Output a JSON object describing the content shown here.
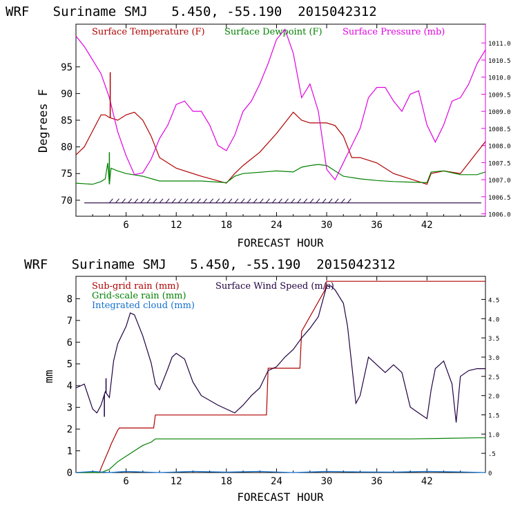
{
  "chart_data": [
    {
      "type": "line",
      "title": "WRF   Suriname SMJ   5.450, -55.190  2015042312",
      "xlabel": "FORECAST HOUR",
      "ylabel": "Degrees F",
      "xlim": [
        0,
        49
      ],
      "ylim": [
        67,
        103
      ],
      "y2lim": [
        1005.93,
        1011.55
      ],
      "x_ticks": [
        "6",
        "12",
        "18",
        "24",
        "30",
        "36",
        "42"
      ],
      "y_ticks": [
        "70",
        "75",
        "80",
        "85",
        "90",
        "95"
      ],
      "y2_ticks": [
        "1006.0",
        "1006.5",
        "1007.0",
        "1007.5",
        "1008.0",
        "1008.5",
        "1009.0",
        "1009.5",
        "1010.0",
        "1010.5",
        "1011.0"
      ],
      "legend": [
        "Surface Temperature (F)",
        "Surface Dewpoint (F)",
        "Surface Pressure (mb)"
      ],
      "colors": {
        "temperature": "#b00000",
        "dewpoint": "#008000",
        "pressure": "#e000e0",
        "wind": "#200040"
      },
      "series": [
        {
          "name": "Surface Temperature (F)",
          "axis": "left",
          "x": [
            0,
            1,
            2,
            3,
            3.5,
            4,
            5,
            6,
            7,
            8,
            9,
            10,
            12,
            15,
            18,
            19,
            20,
            22,
            24,
            26,
            27,
            28,
            29,
            30,
            31,
            32,
            33,
            34,
            36,
            38,
            40,
            42,
            42.5,
            44,
            46,
            48,
            49
          ],
          "y": [
            78.5,
            80,
            83,
            86,
            86,
            85.5,
            85,
            86,
            86.5,
            85,
            82,
            78,
            76,
            74.5,
            73.2,
            75,
            76.5,
            79,
            82.5,
            86.5,
            85,
            84.5,
            84.5,
            84.5,
            84,
            82,
            78,
            78,
            77,
            75,
            74,
            73,
            75,
            75.5,
            75,
            79,
            81
          ]
        },
        {
          "name": "Surface Dewpoint (F)",
          "axis": "left",
          "x": [
            0,
            2,
            3,
            3.5,
            3.8,
            4,
            4.2,
            5,
            6,
            8,
            10,
            12,
            15,
            18,
            19,
            20,
            24,
            26,
            27,
            28,
            29,
            30,
            32,
            34,
            36,
            38,
            40,
            42,
            42.5,
            44,
            46,
            48,
            49
          ],
          "y": [
            73.2,
            73,
            73.5,
            74,
            77,
            73,
            76,
            75.5,
            75,
            74.5,
            73.6,
            73.6,
            73.6,
            73.3,
            74.5,
            75,
            75.5,
            75.3,
            76.2,
            76.5,
            76.7,
            76.5,
            74.5,
            74,
            73.7,
            73.5,
            73.4,
            73.3,
            75.3,
            75.5,
            74.8,
            74.8,
            75.3
          ]
        },
        {
          "name": "Surface Pressure (mb)",
          "axis": "right",
          "x": [
            0,
            1,
            2,
            3,
            4,
            5,
            6,
            7,
            8,
            9,
            10,
            11,
            12,
            13,
            14,
            15,
            16,
            17,
            18,
            19,
            20,
            21,
            22,
            23,
            24,
            25,
            26,
            27,
            28,
            29,
            30,
            31,
            32,
            33,
            34,
            35,
            36,
            37,
            38,
            39,
            40,
            41,
            42,
            43,
            44,
            45,
            46,
            47,
            48,
            49
          ],
          "y": [
            1011.2,
            1010.9,
            1010.5,
            1010.1,
            1009.4,
            1008.4,
            1007.7,
            1007.15,
            1007.2,
            1007.6,
            1008.2,
            1008.6,
            1009.2,
            1009.3,
            1009.0,
            1009.0,
            1008.6,
            1008.0,
            1007.85,
            1008.3,
            1009.0,
            1009.3,
            1009.8,
            1010.4,
            1011.1,
            1011.4,
            1010.7,
            1009.4,
            1009.8,
            1009.0,
            1007.3,
            1007.0,
            1007.5,
            1008.0,
            1008.5,
            1009.4,
            1009.7,
            1009.7,
            1009.3,
            1009.0,
            1009.5,
            1009.6,
            1008.6,
            1008.1,
            1008.6,
            1009.3,
            1009.4,
            1009.8,
            1010.4,
            1010.8
          ]
        }
      ],
      "spikes": [
        {
          "series": "Surface Temperature (F)",
          "x": 4.1,
          "y": 94
        },
        {
          "series": "Surface Dewpoint (F)",
          "x": 4.0,
          "y": 79
        }
      ],
      "wind_barbs_y": 69.5
    },
    {
      "type": "line",
      "title": "WRF   Suriname SMJ   5.450, -55.190  2015042312",
      "xlabel": "FORECAST HOUR",
      "ylabel": "mm",
      "xlim": [
        0,
        49
      ],
      "ylim": [
        0,
        9.03
      ],
      "y2lim": [
        0,
        5.1
      ],
      "x_ticks": [
        "6",
        "12",
        "18",
        "24",
        "30",
        "36",
        "42"
      ],
      "y_ticks": [
        "0",
        "1",
        "2",
        "3",
        "4",
        "5",
        "6",
        "7",
        "8"
      ],
      "y2_ticks": [
        "0",
        ".5",
        "1.0",
        "1.5",
        "2.0",
        "2.5",
        "3.0",
        "3.5",
        "4.0",
        "4.5"
      ],
      "legend": [
        "Sub-grid rain (mm)",
        "Grid-scale rain (mm)",
        "Integrated cloud (mm)",
        "Surface Wind Speed (m/s)"
      ],
      "colors": {
        "subgrid": "#b00000",
        "gridscale": "#008000",
        "cloud": "#1070d0",
        "wind": "#200040"
      },
      "series": [
        {
          "name": "Sub-grid rain (mm)",
          "axis": "left",
          "x": [
            0,
            2.8,
            3,
            4,
            4.2,
            5,
            5.2,
            9.3,
            9.5,
            22.8,
            23,
            26.8,
            27,
            29.8,
            30,
            49
          ],
          "y": [
            0,
            0,
            0.2,
            1.1,
            1.3,
            1.95,
            2.05,
            2.05,
            2.65,
            2.65,
            4.8,
            4.8,
            6.5,
            8.4,
            8.8,
            8.8
          ]
        },
        {
          "name": "Grid-scale rain (mm)",
          "axis": "left",
          "x": [
            0,
            3,
            4,
            5,
            6,
            7,
            8,
            9,
            9.5,
            10,
            12,
            20,
            30,
            40,
            48,
            49
          ],
          "y": [
            0,
            0,
            0.15,
            0.5,
            0.75,
            1.0,
            1.25,
            1.4,
            1.55,
            1.55,
            1.55,
            1.55,
            1.55,
            1.55,
            1.6,
            1.6
          ]
        },
        {
          "name": "Integrated cloud (mm)",
          "axis": "left",
          "x": [
            0,
            2,
            4,
            6,
            10,
            14,
            18,
            22,
            26,
            30,
            34,
            38,
            42,
            46,
            49
          ],
          "y": [
            0,
            0.05,
            0,
            0.05,
            0,
            0.05,
            0.02,
            0.05,
            0,
            0.05,
            0.03,
            0.02,
            0.05,
            0.03,
            0
          ]
        },
        {
          "name": "Surface Wind Speed (m/s)",
          "axis": "right",
          "x": [
            0,
            1,
            2,
            2.5,
            3,
            3.5,
            4,
            4.5,
            5,
            6,
            6.5,
            7,
            8,
            9,
            9.5,
            10,
            11,
            11.5,
            12,
            13,
            14,
            15,
            17,
            19,
            20,
            21,
            22,
            23,
            24,
            25,
            26,
            27,
            28,
            29,
            30,
            30.5,
            31,
            32,
            32.5,
            33,
            33.5,
            34,
            35,
            36,
            37,
            38,
            39,
            40,
            41,
            42,
            42.5,
            43,
            44,
            45,
            45.5,
            46,
            47,
            48,
            49
          ],
          "y": [
            2.2,
            2.3,
            1.65,
            1.55,
            1.75,
            2.1,
            1.95,
            2.9,
            3.35,
            3.8,
            4.15,
            4.1,
            3.55,
            2.85,
            2.3,
            2.15,
            2.7,
            3.0,
            3.1,
            2.95,
            2.35,
            2.0,
            1.75,
            1.55,
            1.75,
            2.0,
            2.2,
            2.65,
            2.75,
            3.0,
            3.2,
            3.5,
            3.75,
            4.05,
            4.85,
            4.85,
            4.75,
            4.4,
            3.8,
            2.8,
            1.8,
            2.0,
            3.0,
            2.8,
            2.6,
            2.8,
            2.6,
            1.7,
            1.55,
            1.4,
            2.15,
            2.7,
            2.9,
            2.3,
            1.3,
            2.5,
            2.65,
            2.7,
            2.7
          ]
        }
      ],
      "spikes": [
        {
          "series": "Surface Wind Speed (m/s)",
          "x": 3.4,
          "y": 1.45
        },
        {
          "series": "Surface Wind Speed (m/s)",
          "x": 3.6,
          "y": 2.45
        }
      ]
    }
  ]
}
